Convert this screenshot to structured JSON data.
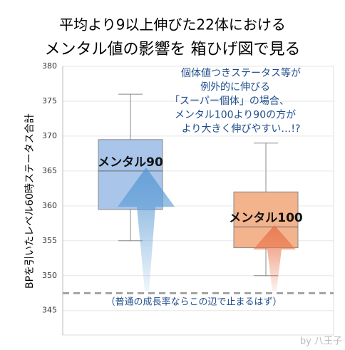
{
  "chart_data": {
    "type": "box",
    "title_lines": [
      "平均より9以上伸びた22体における",
      "メンタル値の影響を 箱ひげ図で見る"
    ],
    "ylabel": "BPを引いたレベル60時ステータス合計",
    "ylim": [
      341.5,
      380
    ],
    "yticks": [
      345,
      350,
      355,
      360,
      365,
      370,
      375,
      380
    ],
    "grid": true,
    "series": [
      {
        "name": "メンタル90",
        "color": "#a9c5ea",
        "min": 355,
        "q1": 359.5,
        "median": 365,
        "q3": 369.5,
        "max": 376
      },
      {
        "name": "メンタル100",
        "color": "#f3b38d",
        "min": 350,
        "q1": 354,
        "median": 357,
        "q3": 362,
        "max": 369
      }
    ],
    "reference_line": {
      "value": 347.5,
      "label": "（普通の成長率ならこの辺で止まるはず）"
    },
    "annotation_lines": [
      "個体値つきステータス等が",
      "例外的に伸びる",
      "「スーパー個体」の場合、",
      "メンタル100より90の方が",
      "より大きく伸びやすい…!?"
    ],
    "credit": "by 八王子"
  }
}
